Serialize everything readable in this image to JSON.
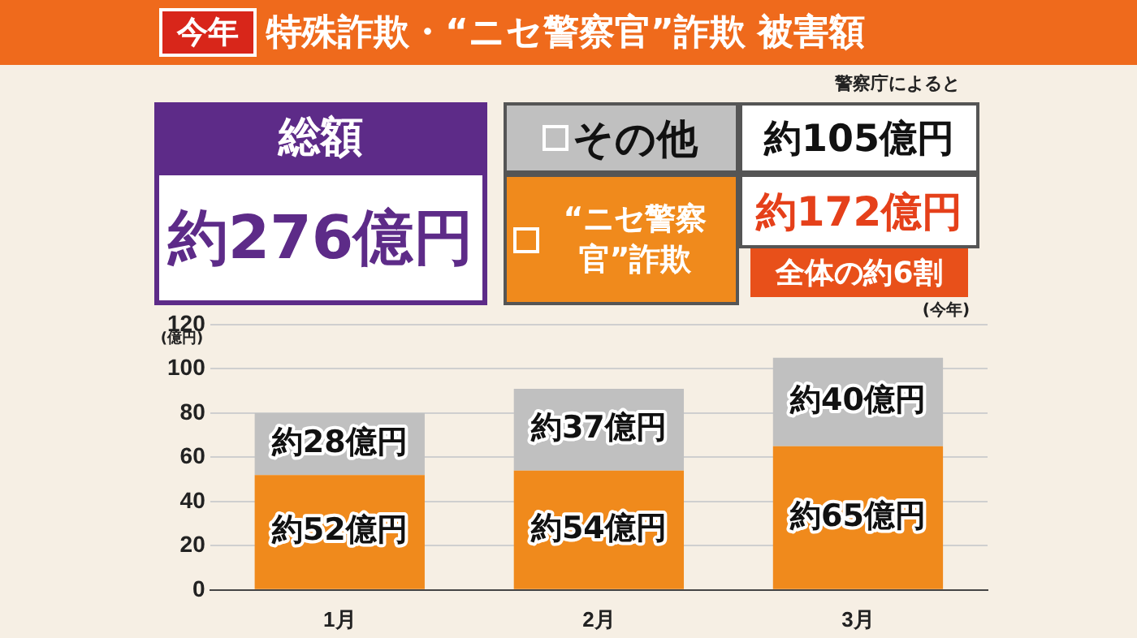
{
  "chart_data": {
    "type": "bar",
    "title": "特殊詐欺・“ニセ警察官”詐欺 被害額",
    "subtitle": "今年",
    "ylabel": "(億円)",
    "annotations": [
      "警察庁によると",
      "総額",
      "約276億円",
      "約105億円",
      "約172億円",
      "全体の約6割",
      "(今年)"
    ],
    "categories": [
      "1月",
      "2月",
      "3月"
    ],
    "stacked": true,
    "legend": "top",
    "grid": "y",
    "ylim": [
      0,
      120
    ],
    "yticks": [
      0,
      20,
      40,
      60,
      80,
      100,
      120
    ],
    "series": [
      {
        "name": "“ニセ警察官”詐欺",
        "color": "#f08a1c",
        "values": [
          52,
          54,
          65
        ],
        "value_labels": [
          "約52億円",
          "約54億円",
          "約65億円"
        ]
      },
      {
        "name": "その他",
        "color": "#c0c0c0",
        "values": [
          28,
          37,
          40
        ],
        "value_labels": [
          "約28億円",
          "約37億円",
          "約40億円"
        ]
      }
    ]
  }
}
